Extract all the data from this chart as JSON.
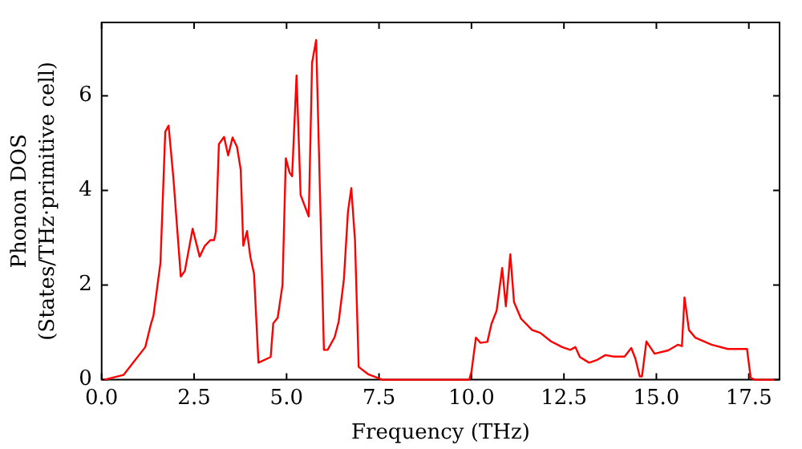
{
  "chart_data": {
    "type": "line",
    "xlabel": "Frequency (THz)",
    "ylabel": "Phonon DOS\n(States/THz·primitive cell)",
    "xlim": [
      0,
      18.33
    ],
    "ylim": [
      0,
      7.55
    ],
    "xticks": [
      {
        "value": 0,
        "label": "0.0"
      },
      {
        "value": 2.5,
        "label": "2.5"
      },
      {
        "value": 5,
        "label": "5.0"
      },
      {
        "value": 7.5,
        "label": "7.5"
      },
      {
        "value": 10,
        "label": "10.0"
      },
      {
        "value": 12.5,
        "label": "12.5"
      },
      {
        "value": 15,
        "label": "15.0"
      },
      {
        "value": 17.5,
        "label": "17.5"
      }
    ],
    "yticks": [
      0,
      2,
      4,
      6
    ],
    "grid": false,
    "legend": false,
    "marker": "none",
    "line_style": "solid",
    "series": [
      {
        "color": "#ff0000",
        "x": [
          0.07,
          0.59,
          1.18,
          1.33,
          1.4,
          1.59,
          1.72,
          1.81,
          1.94,
          2.14,
          2.25,
          2.46,
          2.65,
          2.79,
          2.94,
          3.04,
          3.09,
          3.17,
          3.31,
          3.42,
          3.54,
          3.66,
          3.76,
          3.83,
          3.93,
          4.02,
          4.12,
          4.24,
          4.57,
          4.64,
          4.76,
          4.89,
          4.98,
          5.08,
          5.15,
          5.27,
          5.38,
          5.6,
          5.69,
          5.8,
          6.01,
          6.11,
          6.3,
          6.41,
          6.55,
          6.66,
          6.75,
          6.85,
          6.95,
          7.2,
          7.59,
          9.94,
          10.0,
          10.12,
          10.24,
          10.43,
          10.54,
          10.68,
          10.83,
          10.93,
          11.05,
          11.15,
          11.34,
          11.64,
          11.86,
          12.15,
          12.45,
          12.67,
          12.81,
          12.93,
          13.18,
          13.4,
          13.62,
          13.84,
          14.14,
          14.32,
          14.43,
          14.55,
          14.61,
          14.73,
          14.95,
          15.32,
          15.58,
          15.69,
          15.76,
          15.88,
          16.05,
          16.49,
          16.93,
          17.45,
          17.55,
          17.67,
          18.2
        ],
        "values": [
          0,
          0.1,
          0.69,
          1.17,
          1.35,
          2.47,
          5.24,
          5.37,
          4.26,
          2.18,
          2.3,
          3.19,
          2.6,
          2.83,
          2.95,
          2.95,
          3.13,
          4.98,
          5.13,
          4.74,
          5.12,
          4.92,
          4.44,
          2.83,
          3.14,
          2.6,
          2.24,
          0.36,
          0.48,
          1.19,
          1.31,
          2.0,
          4.68,
          4.38,
          4.3,
          6.43,
          3.9,
          3.45,
          6.7,
          7.18,
          0.63,
          0.63,
          0.9,
          1.23,
          2.12,
          3.55,
          4.05,
          2.95,
          0.27,
          0.12,
          0,
          0,
          0.17,
          0.89,
          0.78,
          0.8,
          1.18,
          1.46,
          2.36,
          1.55,
          2.65,
          1.64,
          1.29,
          1.05,
          0.99,
          0.81,
          0.69,
          0.63,
          0.69,
          0.48,
          0.36,
          0.42,
          0.52,
          0.49,
          0.49,
          0.67,
          0.45,
          0.07,
          0.07,
          0.81,
          0.55,
          0.62,
          0.74,
          0.71,
          1.74,
          1.05,
          0.89,
          0.74,
          0.65,
          0.65,
          0.04,
          0,
          0
        ]
      }
    ]
  }
}
